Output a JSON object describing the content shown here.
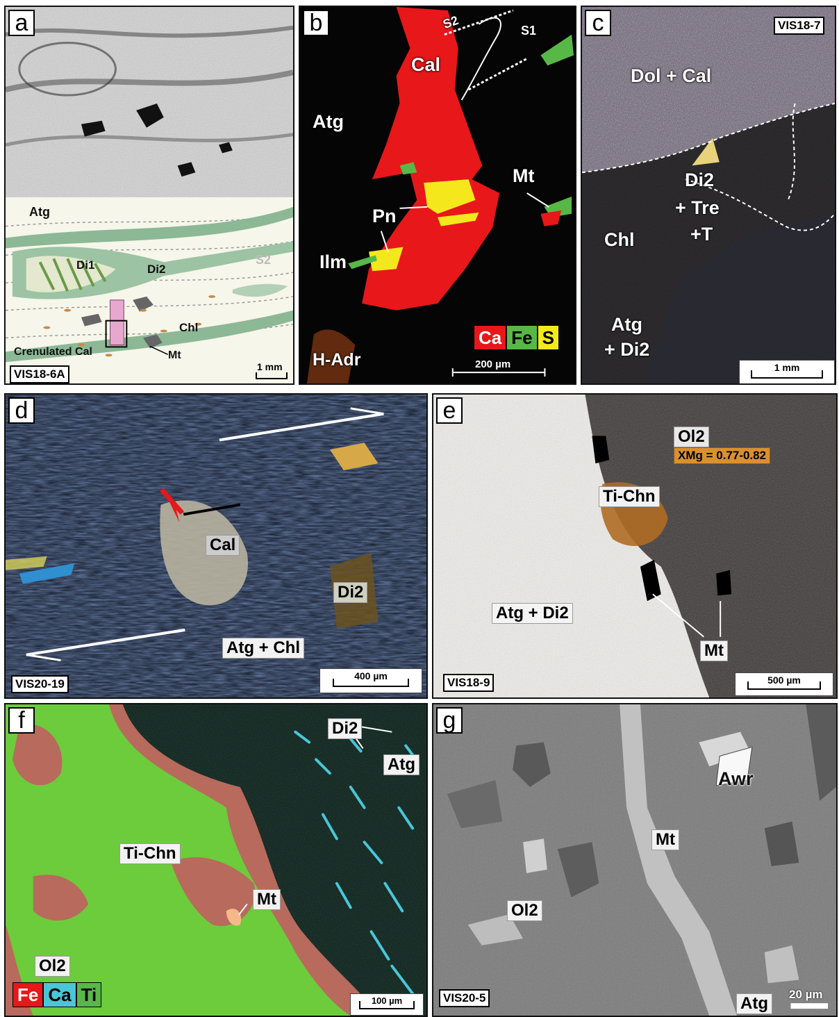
{
  "panels": {
    "a": {
      "letter": "a",
      "sample": "VIS18-6A",
      "scale": "1 mm",
      "labels": {
        "atg": "Atg",
        "di1": "Di1",
        "di2": "Di2",
        "s2": "S2",
        "chl": "Chl",
        "crenulated": "Crenulated Cal",
        "mt": "Mt"
      }
    },
    "b": {
      "letter": "b",
      "scale": "200 µm",
      "labels": {
        "s2": "S2",
        "s1": "S1",
        "cal": "Cal",
        "atg": "Atg",
        "mt": "Mt",
        "pn": "Pn",
        "ilm": "Ilm",
        "hadr": "H-Adr"
      },
      "elements": [
        "Ca",
        "Fe",
        "S"
      ]
    },
    "c": {
      "letter": "c",
      "sample": "VIS18-7",
      "scale": "1 mm",
      "labels": {
        "dolcal": "Dol + Cal",
        "di2": "Di2",
        "tre": "+ Tre",
        "t": "+T",
        "chl": "Chl",
        "atg": "Atg",
        "di2b": "+ Di2"
      }
    },
    "d": {
      "letter": "d",
      "sample": "VIS20-19",
      "scale": "400 µm",
      "labels": {
        "cal": "Cal",
        "di2": "Di2",
        "atgchl": "Atg + Chl"
      }
    },
    "e": {
      "letter": "e",
      "sample": "VIS18-9",
      "scale": "500 µm",
      "labels": {
        "ol2": "Ol2",
        "xmg": "XMg = 0.77-0.82",
        "tichn": "Ti-Chn",
        "atgdi2": "Atg + Di2",
        "mt": "Mt"
      }
    },
    "f": {
      "letter": "f",
      "scale": "100 µm",
      "labels": {
        "di2": "Di2",
        "atg": "Atg",
        "tichn": "Ti-Chn",
        "mt": "Mt",
        "ol2": "Ol2"
      },
      "elements": [
        "Fe",
        "Ca",
        "Ti"
      ]
    },
    "g": {
      "letter": "g",
      "sample": "VIS20-5",
      "scale": "20 µm",
      "labels": {
        "awr": "Awr",
        "mt": "Mt",
        "ol2": "Ol2",
        "atg": "Atg"
      }
    }
  },
  "colors": {
    "ca": "#e8171a",
    "fe": "#57b847",
    "s": "#f4e81c",
    "ti": "#6ccc3c",
    "ca_f": "#49c6d8",
    "fe_f": "#b86a5c"
  }
}
